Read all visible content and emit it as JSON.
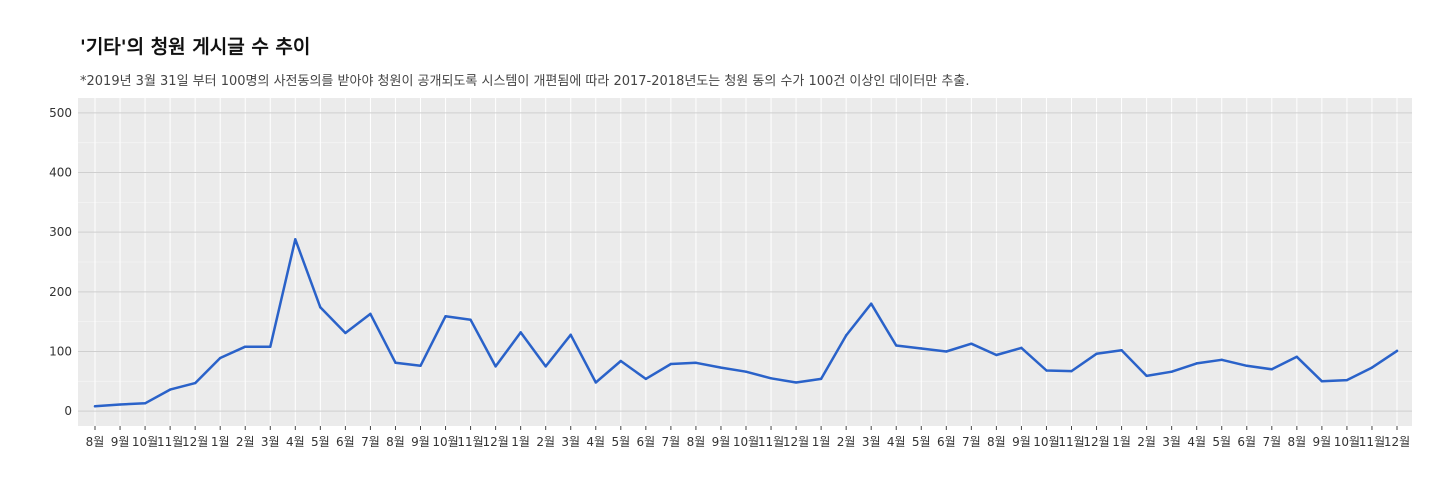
{
  "chart_data": {
    "type": "line",
    "title": "'기타'의 청원 게시글 수 추이",
    "subtitle": "*2019년 3월 31일 부터 100명의 사전동의를 받아야 청원이 공개되도록 시스템이 개편됨에 따라 2017-2018년도는 청원 동의 수가 100건 이상인 데이터만 추출.",
    "xlabel": "",
    "ylabel": "",
    "ylim": [
      -25,
      525
    ],
    "yticks": [
      0,
      100,
      200,
      300,
      400,
      500
    ],
    "grid": true,
    "line_color": "#2a62c9",
    "categories": [
      "8월",
      "9월",
      "10월",
      "11월",
      "12월",
      "1월",
      "2월",
      "3월",
      "4월",
      "5월",
      "6월",
      "7월",
      "8월",
      "9월",
      "10월",
      "11월",
      "12월",
      "1월",
      "2월",
      "3월",
      "4월",
      "5월",
      "6월",
      "7월",
      "8월",
      "9월",
      "10월",
      "11월",
      "12월",
      "1월",
      "2월",
      "3월",
      "4월",
      "5월",
      "6월",
      "7월",
      "8월",
      "9월",
      "10월",
      "11월",
      "12월",
      "1월",
      "2월",
      "3월",
      "4월",
      "5월",
      "6월",
      "7월",
      "8월",
      "9월",
      "10월",
      "11월",
      "12월"
    ],
    "series": [
      {
        "values": [
          8,
          11,
          13,
          36,
          47,
          89,
          108,
          108,
          288,
          174,
          131,
          163,
          81,
          76,
          159,
          153,
          75,
          132,
          75,
          128,
          48,
          84,
          54,
          79,
          81,
          73,
          66,
          55,
          48,
          54,
          127,
          180,
          110,
          105,
          100,
          113,
          94,
          106,
          68,
          67,
          96,
          102,
          59,
          66,
          80,
          86,
          76,
          70,
          91,
          50,
          52,
          73,
          101
        ]
      }
    ]
  }
}
